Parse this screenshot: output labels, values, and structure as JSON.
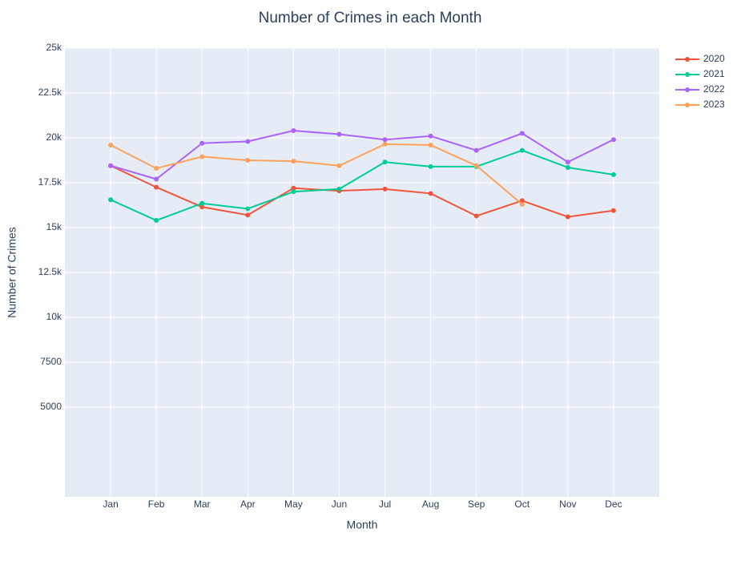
{
  "chart_data": {
    "type": "line",
    "title": "Number of Crimes in each Month",
    "x_label": "Month",
    "y_label": "Number of Crimes",
    "categories": [
      "Jan",
      "Feb",
      "Mar",
      "Apr",
      "May",
      "Jun",
      "Jul",
      "Aug",
      "Sep",
      "Oct",
      "Nov",
      "Dec"
    ],
    "series": [
      {
        "name": "2020",
        "color": "#EF553B",
        "values": [
          18450,
          17250,
          16150,
          15700,
          17200,
          17050,
          17150,
          16900,
          15650,
          16500,
          15600,
          15950
        ]
      },
      {
        "name": "2021",
        "color": "#00CC96",
        "values": [
          16550,
          15400,
          16350,
          16050,
          17000,
          17150,
          18650,
          18400,
          18400,
          19300,
          18350,
          17950
        ]
      },
      {
        "name": "2022",
        "color": "#AB63FA",
        "values": [
          18450,
          17700,
          19700,
          19800,
          20400,
          20200,
          19900,
          20100,
          19300,
          20250,
          18650,
          19900
        ]
      },
      {
        "name": "2023",
        "color": "#FFA15A",
        "values": [
          19600,
          18300,
          18950,
          18750,
          18700,
          18450,
          19650,
          19600,
          18450,
          16300,
          null,
          null
        ]
      }
    ],
    "ylim": [
      0,
      25000
    ],
    "yticks": [
      5000,
      7500,
      {
        "value": 10000,
        "label": "10k"
      },
      {
        "value": 12500,
        "label": "12.5k"
      },
      {
        "value": 15000,
        "label": "15k"
      },
      {
        "value": 17500,
        "label": "17.5k"
      },
      {
        "value": 20000,
        "label": "20k"
      },
      {
        "value": 22500,
        "label": "22.5k"
      },
      {
        "value": 25000,
        "label": "25k"
      }
    ],
    "grid": true,
    "legend": "right"
  }
}
